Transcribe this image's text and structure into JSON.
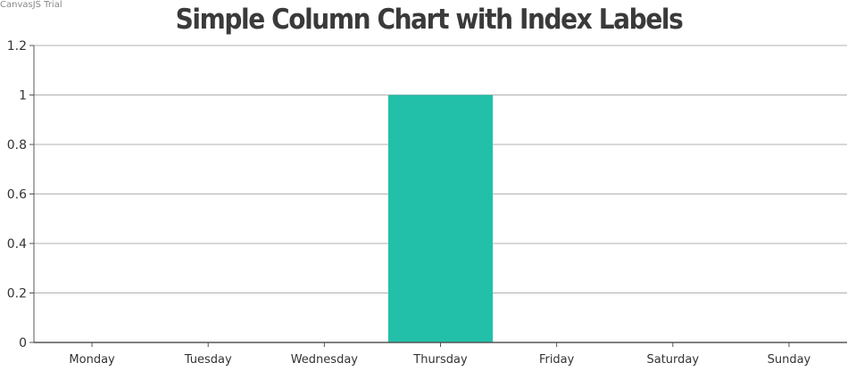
{
  "credit": "CanvasJS Trial",
  "chart_data": {
    "type": "bar",
    "title": "Simple Column Chart with Index Labels",
    "categories": [
      "Monday",
      "Tuesday",
      "Wednesday",
      "Thursday",
      "Friday",
      "Saturday",
      "Sunday"
    ],
    "values": [
      0,
      0,
      0,
      1,
      0,
      0,
      0
    ],
    "ylim": [
      0,
      1.2
    ],
    "yticks": [
      "0",
      "0.2",
      "0.4",
      "0.6",
      "0.8",
      "1",
      "1.2"
    ],
    "grid": true,
    "colors": {
      "bar": "#22c0a9",
      "grid": "#b0b0b0",
      "axis": "#555555"
    }
  }
}
